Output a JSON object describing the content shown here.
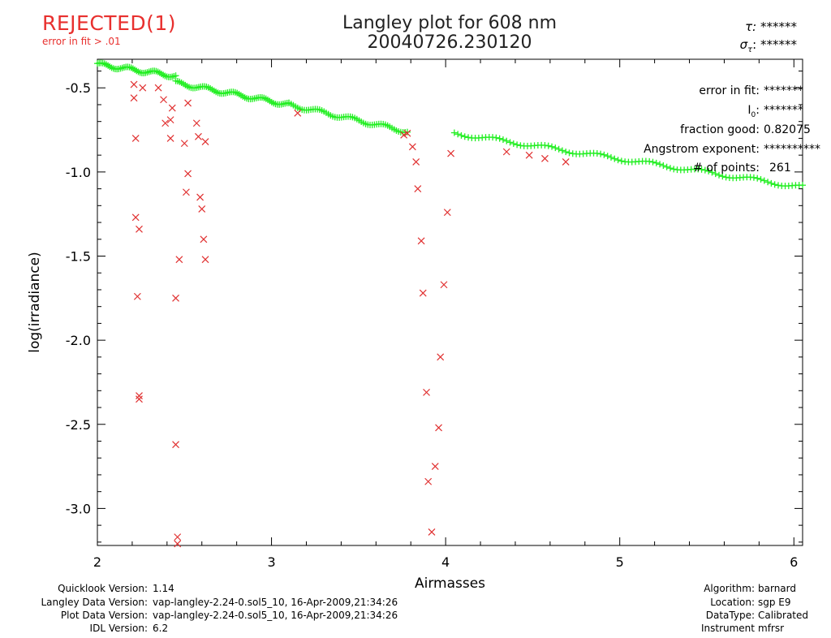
{
  "status": {
    "label": "REJECTED(1)",
    "note": "error in fit > .01"
  },
  "header": {
    "title_line1": "Langley plot for 608 nm",
    "title_line2": "20040726.230120",
    "tau_label": "τ:",
    "tau_value": "******",
    "sigma_label": "σ",
    "sigma_sub": "τ",
    "sigma_value": "******"
  },
  "fit_info": {
    "error_label": "error in fit:",
    "error_value": "*******",
    "i0_label": "I",
    "i0_sub": "0",
    "i0_colon": ":",
    "i0_value": "*******",
    "fraction_label": "fraction good:",
    "fraction_value": "0.82075",
    "angstrom_label": "Angstrom exponent:",
    "angstrom_value": "**********",
    "points_label": "# of points:",
    "points_value": "261"
  },
  "footer_left": [
    {
      "label": "Quicklook Version:",
      "value": "1.14"
    },
    {
      "label": "Langley Data Version:",
      "value": "vap-langley-2.24-0.sol5_10, 16-Apr-2009,21:34:26"
    },
    {
      "label": "Plot Data Version:",
      "value": "vap-langley-2.24-0.sol5_10, 16-Apr-2009,21:34:26"
    },
    {
      "label": "IDL Version:",
      "value": "6.2"
    }
  ],
  "footer_right": [
    {
      "label": "Algorithm:",
      "value": "barnard"
    },
    {
      "label": "Location:",
      "value": "sgp E9"
    },
    {
      "label": "DataType:",
      "value": "Calibrated"
    },
    {
      "label": "Instrument",
      "value": "mfrsr"
    }
  ],
  "colors": {
    "accepted": "#22ee22",
    "rejected": "#e03030",
    "axis": "#000000",
    "status": "#e8302e"
  },
  "chart_data": {
    "type": "scatter",
    "xlabel": "Airmasses",
    "ylabel": "log(irradiance)",
    "xlim": [
      2,
      6.05
    ],
    "ylim": [
      -3.22,
      -0.33
    ],
    "x_ticks": [
      2,
      3,
      4,
      5,
      6
    ],
    "x_tick_labels": [
      "2",
      "3",
      "4",
      "5",
      "6"
    ],
    "y_ticks": [
      -0.5,
      -1.0,
      -1.5,
      -2.0,
      -2.5,
      -3.0
    ],
    "y_tick_labels": [
      "-0.5",
      "-1.0",
      "-1.5",
      "-2.0",
      "-2.5",
      "-3.0"
    ],
    "grid": false,
    "series": [
      {
        "marker": "plus",
        "color": "#22ee22",
        "segments": [
          {
            "x_start": 2.0,
            "x_end": 2.45,
            "y_start": -0.36,
            "y_end": -0.43,
            "count": 45
          },
          {
            "x_start": 2.45,
            "x_end": 3.1,
            "y_start": -0.47,
            "y_end": -0.6,
            "count": 60
          },
          {
            "x_start": 3.1,
            "x_end": 3.78,
            "y_start": -0.6,
            "y_end": -0.76,
            "count": 55
          },
          {
            "x_start": 4.05,
            "x_end": 6.05,
            "y_start": -0.77,
            "y_end": -1.09,
            "count": 101
          }
        ]
      },
      {
        "marker": "x",
        "color": "#e03030",
        "points": [
          [
            2.21,
            -0.48
          ],
          [
            2.21,
            -0.56
          ],
          [
            2.22,
            -0.8
          ],
          [
            2.22,
            -1.27
          ],
          [
            2.24,
            -1.34
          ],
          [
            2.23,
            -1.74
          ],
          [
            2.24,
            -2.33
          ],
          [
            2.24,
            -2.35
          ],
          [
            2.26,
            -0.5
          ],
          [
            2.35,
            -0.5
          ],
          [
            2.38,
            -0.57
          ],
          [
            2.39,
            -0.71
          ],
          [
            2.42,
            -0.69
          ],
          [
            2.43,
            -0.62
          ],
          [
            2.42,
            -0.8
          ],
          [
            2.45,
            -1.75
          ],
          [
            2.45,
            -2.62
          ],
          [
            2.46,
            -3.17
          ],
          [
            2.46,
            -3.21
          ],
          [
            2.47,
            -1.52
          ],
          [
            2.5,
            -0.83
          ],
          [
            2.51,
            -1.12
          ],
          [
            2.52,
            -1.01
          ],
          [
            2.52,
            -0.59
          ],
          [
            2.57,
            -0.71
          ],
          [
            2.58,
            -0.79
          ],
          [
            2.59,
            -1.15
          ],
          [
            2.6,
            -1.22
          ],
          [
            2.61,
            -1.4
          ],
          [
            2.62,
            -0.82
          ],
          [
            2.62,
            -1.52
          ],
          [
            3.15,
            -0.65
          ],
          [
            3.76,
            -0.78
          ],
          [
            3.78,
            -0.77
          ],
          [
            3.81,
            -0.85
          ],
          [
            3.83,
            -0.94
          ],
          [
            3.84,
            -1.1
          ],
          [
            3.86,
            -1.41
          ],
          [
            3.87,
            -1.72
          ],
          [
            3.89,
            -2.31
          ],
          [
            3.9,
            -2.84
          ],
          [
            3.92,
            -3.14
          ],
          [
            3.94,
            -2.75
          ],
          [
            3.96,
            -2.52
          ],
          [
            3.97,
            -2.1
          ],
          [
            3.99,
            -1.67
          ],
          [
            4.01,
            -1.24
          ],
          [
            4.03,
            -0.89
          ],
          [
            4.35,
            -0.88
          ],
          [
            4.48,
            -0.9
          ],
          [
            4.57,
            -0.92
          ],
          [
            4.69,
            -0.94
          ]
        ]
      }
    ]
  }
}
